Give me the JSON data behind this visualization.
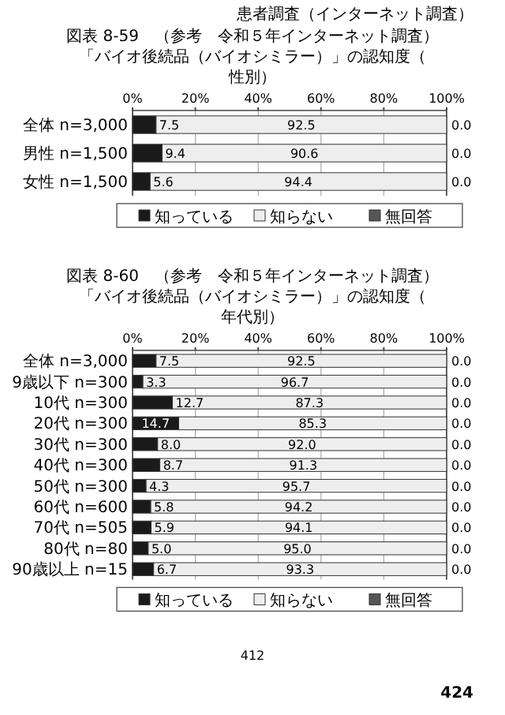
{
  "chart_data": [
    {
      "type": "bar",
      "orientation": "horizontal",
      "stacked": true,
      "title": "図表 8-59　（参考　令和５年インターネット調査）",
      "subtitle": "「バイオ後続品（バイオシミラー）」の認知度（性別）",
      "annotations": [
        "患者調査（インターネット調査）"
      ],
      "categories": [
        "全体 n=3,000",
        "男性 n=1,500",
        "女性 n=1,500"
      ],
      "series": [
        {
          "name": "知っている",
          "color": "#1a1a1a",
          "values": [
            7.5,
            9.4,
            5.6
          ],
          "value_labels": [
            "7.5",
            "9.4",
            "5.6"
          ]
        },
        {
          "name": "知らない",
          "color": "#eeeeee",
          "values": [
            92.5,
            90.6,
            94.4
          ],
          "value_labels": [
            "92.5",
            "90.6",
            "94.4"
          ]
        },
        {
          "name": "無回答",
          "color": "#555555",
          "values": [
            0.0,
            0.0,
            0.0
          ],
          "value_labels": [
            "0.0",
            "0.0",
            "0.0"
          ]
        }
      ],
      "xlim": [
        0,
        100
      ],
      "xticks": [
        {
          "value": 0,
          "label": "0%"
        },
        {
          "value": 20,
          "label": "20%"
        },
        {
          "value": 40,
          "label": "40%"
        },
        {
          "value": 60,
          "label": "60%"
        },
        {
          "value": 80,
          "label": "80%"
        },
        {
          "value": 100,
          "label": "100%"
        }
      ],
      "grid": "x",
      "legend": "bottom"
    },
    {
      "type": "bar",
      "orientation": "horizontal",
      "stacked": true,
      "title": "図表 8-60　（参考　令和５年インターネット調査）",
      "subtitle": "「バイオ後続品（バイオシミラー）」の認知度（年代別）",
      "annotations": [
        "412",
        "424"
      ],
      "categories": [
        "全体 n=3,000",
        "9歳以下 n=300",
        "10代 n=300",
        "20代 n=300",
        "30代 n=300",
        "40代 n=300",
        "50代 n=300",
        "60代 n=600",
        "70代 n=505",
        "80代 n=80",
        "90歳以上 n=15"
      ],
      "series": [
        {
          "name": "知っている",
          "color": "#1a1a1a",
          "values": [
            7.5,
            3.3,
            12.7,
            14.7,
            8.0,
            8.7,
            4.3,
            5.8,
            5.9,
            5.0,
            6.7
          ],
          "value_labels": [
            "7.5",
            "3.3",
            "12.7",
            "14.7",
            "8.0",
            "8.7",
            "4.3",
            "5.8",
            "5.9",
            "5.0",
            "6.7"
          ]
        },
        {
          "name": "知らない",
          "color": "#eeeeee",
          "values": [
            92.5,
            96.7,
            87.3,
            85.3,
            92.0,
            91.3,
            95.7,
            94.2,
            94.1,
            95.0,
            93.3
          ],
          "value_labels": [
            "92.5",
            "96.7",
            "87.3",
            "85.3",
            "92.0",
            "91.3",
            "95.7",
            "94.2",
            "94.1",
            "95.0",
            "93.3"
          ]
        },
        {
          "name": "無回答",
          "color": "#555555",
          "values": [
            0.0,
            0.0,
            0.0,
            0.0,
            0.0,
            0.0,
            0.0,
            0.0,
            0.0,
            0.0,
            0.0
          ],
          "value_labels": [
            "0.0",
            "0.0",
            "0.0",
            "0.0",
            "0.0",
            "0.0",
            "0.0",
            "0.0",
            "0.0",
            "0.0",
            "0.0"
          ]
        }
      ],
      "xlim": [
        0,
        100
      ],
      "xticks": [
        {
          "value": 0,
          "label": "0%"
        },
        {
          "value": 20,
          "label": "20%"
        },
        {
          "value": 40,
          "label": "40%"
        },
        {
          "value": 60,
          "label": "60%"
        },
        {
          "value": 80,
          "label": "80%"
        },
        {
          "value": 100,
          "label": "100%"
        }
      ],
      "grid": "x",
      "legend": "bottom"
    }
  ]
}
